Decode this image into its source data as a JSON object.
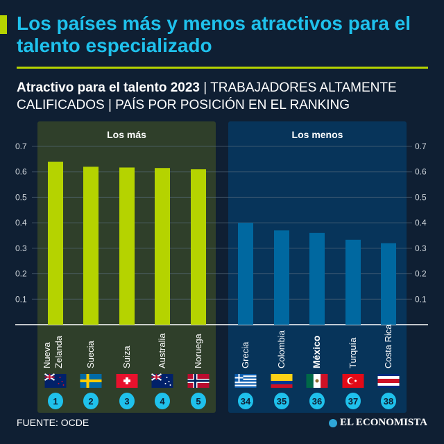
{
  "header": {
    "title": "Los países más y menos atractivos para el talento especializado",
    "subtitle_bold": "Atractivo para el talento 2023",
    "subtitle_rest": " | TRABAJADORES ALTAMENTE CALIFICADOS | PAÍS POR POSICIÓN EN EL RANKING"
  },
  "colors": {
    "background": "#0f1f33",
    "title": "#1fc1ec",
    "accent": "#b5d300",
    "top_bars": "#b5d300",
    "bottom_bars": "#0068a0",
    "top_panel": "#2f3f2a",
    "bottom_panel": "#07345a",
    "rank_badge": "#1fc1ec"
  },
  "chart_data": {
    "type": "bar",
    "ylim": [
      0,
      0.7
    ],
    "yticks": [
      "0.1",
      "0.2",
      "0.3",
      "0.4",
      "0.5",
      "0.6",
      "0.7"
    ],
    "grid": true,
    "groups": [
      {
        "label": "Los más",
        "color": "#b5d300",
        "categories": [
          "Nueva Zelanda",
          "Suecia",
          "Suiza",
          "Australia",
          "Noruega"
        ],
        "ranks": [
          "1",
          "2",
          "3",
          "4",
          "5"
        ],
        "flags": [
          "new-zealand-flag",
          "sweden-flag",
          "switzerland-flag",
          "australia-flag",
          "norway-flag"
        ],
        "values": [
          0.64,
          0.62,
          0.617,
          0.615,
          0.61
        ]
      },
      {
        "label": "Los menos",
        "color": "#0068a0",
        "categories": [
          "Grecia",
          "Colombia",
          "México",
          "Turquía",
          "Costa Rica"
        ],
        "ranks": [
          "34",
          "35",
          "36",
          "37",
          "38"
        ],
        "flags": [
          "greece-flag",
          "colombia-flag",
          "mexico-flag",
          "turkey-flag",
          "costa-rica-flag"
        ],
        "highlight": "México",
        "values": [
          0.4,
          0.37,
          0.36,
          0.333,
          0.32
        ]
      }
    ]
  },
  "footer": {
    "source": "FUENTE: OCDE",
    "logo": "EL ECONOMISTA"
  }
}
